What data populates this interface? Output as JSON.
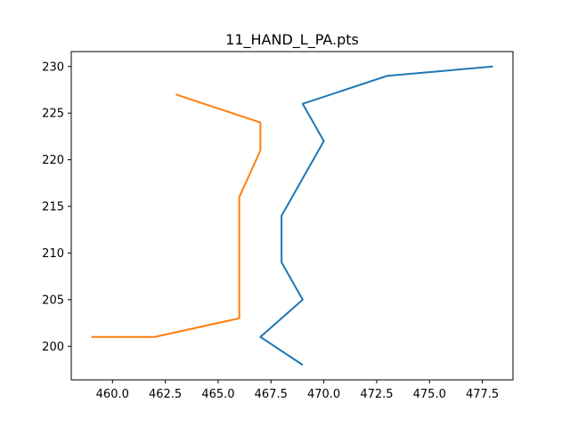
{
  "chart_data": {
    "type": "line",
    "title": "11_HAND_L_PA.pts",
    "xlabel": "",
    "ylabel": "",
    "xlim": [
      458.05,
      478.95
    ],
    "ylim": [
      196.4,
      231.6
    ],
    "grid": false,
    "x_ticks": [
      460.0,
      462.5,
      465.0,
      467.5,
      470.0,
      472.5,
      475.0,
      477.5
    ],
    "x_tick_labels": [
      "460.0",
      "462.5",
      "465.0",
      "467.5",
      "470.0",
      "472.5",
      "475.0",
      "477.5"
    ],
    "y_ticks": [
      200,
      205,
      210,
      215,
      220,
      225,
      230
    ],
    "y_tick_labels": [
      "200",
      "205",
      "210",
      "215",
      "220",
      "225",
      "230"
    ],
    "series": [
      {
        "color": "#1f77b4",
        "points": [
          [
            469,
            198
          ],
          [
            467,
            201
          ],
          [
            469,
            205
          ],
          [
            468,
            209
          ],
          [
            468,
            214
          ],
          [
            470,
            222
          ],
          [
            469,
            226
          ],
          [
            473,
            229
          ],
          [
            478,
            230
          ]
        ]
      },
      {
        "color": "#ff7f0e",
        "points": [
          [
            459,
            201
          ],
          [
            462,
            201
          ],
          [
            466,
            203
          ],
          [
            466,
            208
          ],
          [
            466,
            216
          ],
          [
            467,
            221
          ],
          [
            467,
            224
          ],
          [
            463,
            227
          ]
        ]
      }
    ]
  }
}
